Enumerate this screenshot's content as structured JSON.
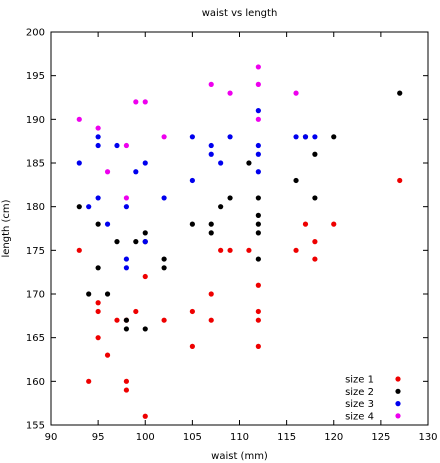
{
  "chart_data": {
    "type": "scatter",
    "title": "waist vs length",
    "xlabel": "waist (mm)",
    "ylabel": "length (cm)",
    "xlim": [
      90,
      130
    ],
    "ylim": [
      155,
      200
    ],
    "x_ticks": [
      90,
      95,
      100,
      105,
      110,
      115,
      120,
      125,
      130
    ],
    "y_ticks": [
      155,
      160,
      165,
      170,
      175,
      180,
      185,
      190,
      195,
      200
    ],
    "grid": false,
    "legend_position": "bottom-right",
    "series": [
      {
        "name": "size 1",
        "color": "#ee0000",
        "points": [
          [
            93,
            175
          ],
          [
            94,
            160
          ],
          [
            95,
            169
          ],
          [
            95,
            168
          ],
          [
            95,
            165
          ],
          [
            96,
            163
          ],
          [
            97,
            167
          ],
          [
            98,
            167
          ],
          [
            98,
            160
          ],
          [
            98,
            159
          ],
          [
            99,
            168
          ],
          [
            100,
            172
          ],
          [
            100,
            156
          ],
          [
            102,
            167
          ],
          [
            105,
            168
          ],
          [
            105,
            164
          ],
          [
            107,
            170
          ],
          [
            107,
            167
          ],
          [
            108,
            175
          ],
          [
            109,
            175
          ],
          [
            111,
            175
          ],
          [
            112,
            171
          ],
          [
            112,
            168
          ],
          [
            112,
            167
          ],
          [
            112,
            164
          ],
          [
            116,
            175
          ],
          [
            117,
            178
          ],
          [
            118,
            176
          ],
          [
            118,
            174
          ],
          [
            120,
            178
          ],
          [
            127,
            183
          ]
        ]
      },
      {
        "name": "size 2",
        "color": "#000000",
        "points": [
          [
            93,
            180
          ],
          [
            94,
            170
          ],
          [
            95,
            178
          ],
          [
            95,
            173
          ],
          [
            96,
            170
          ],
          [
            97,
            176
          ],
          [
            98,
            167
          ],
          [
            98,
            166
          ],
          [
            99,
            176
          ],
          [
            100,
            177
          ],
          [
            100,
            176
          ],
          [
            100,
            166
          ],
          [
            102,
            174
          ],
          [
            102,
            173
          ],
          [
            105,
            178
          ],
          [
            107,
            178
          ],
          [
            107,
            177
          ],
          [
            108,
            180
          ],
          [
            109,
            181
          ],
          [
            111,
            185
          ],
          [
            112,
            181
          ],
          [
            112,
            179
          ],
          [
            112,
            178
          ],
          [
            112,
            177
          ],
          [
            112,
            174
          ],
          [
            116,
            183
          ],
          [
            117,
            188
          ],
          [
            118,
            186
          ],
          [
            118,
            181
          ],
          [
            120,
            188
          ],
          [
            127,
            193
          ]
        ]
      },
      {
        "name": "size 3",
        "color": "#0000ee",
        "points": [
          [
            93,
            185
          ],
          [
            94,
            180
          ],
          [
            95,
            188
          ],
          [
            95,
            187
          ],
          [
            95,
            181
          ],
          [
            96,
            178
          ],
          [
            97,
            187
          ],
          [
            98,
            180
          ],
          [
            98,
            174
          ],
          [
            98,
            173
          ],
          [
            99,
            184
          ],
          [
            100,
            185
          ],
          [
            100,
            176
          ],
          [
            102,
            181
          ],
          [
            105,
            188
          ],
          [
            105,
            183
          ],
          [
            107,
            187
          ],
          [
            107,
            186
          ],
          [
            108,
            185
          ],
          [
            109,
            188
          ],
          [
            112,
            191
          ],
          [
            112,
            187
          ],
          [
            112,
            186
          ],
          [
            112,
            184
          ],
          [
            116,
            188
          ],
          [
            117,
            188
          ],
          [
            118,
            188
          ]
        ]
      },
      {
        "name": "size 4",
        "color": "#ee00ee",
        "points": [
          [
            93,
            190
          ],
          [
            95,
            189
          ],
          [
            96,
            184
          ],
          [
            98,
            187
          ],
          [
            98,
            181
          ],
          [
            99,
            192
          ],
          [
            100,
            192
          ],
          [
            102,
            188
          ],
          [
            107,
            194
          ],
          [
            109,
            193
          ],
          [
            112,
            196
          ],
          [
            112,
            194
          ],
          [
            112,
            190
          ],
          [
            116,
            193
          ]
        ]
      }
    ]
  }
}
